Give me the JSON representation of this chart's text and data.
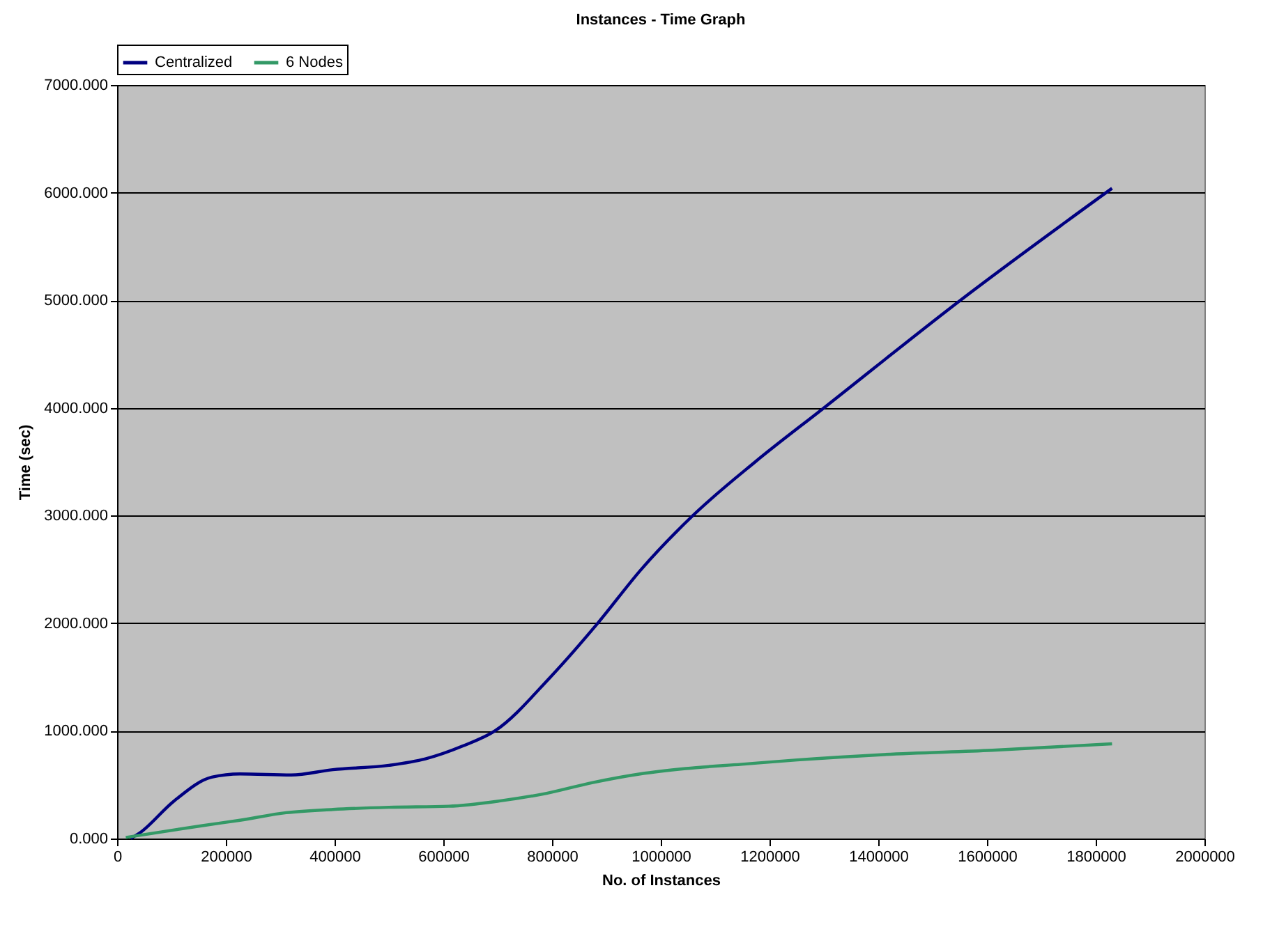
{
  "chart_data": {
    "type": "line",
    "title": "Instances - Time Graph",
    "xlabel": "No. of Instances",
    "ylabel": "Time (sec)",
    "xlim": [
      0,
      2000000
    ],
    "xticks": [
      0,
      200000,
      400000,
      600000,
      800000,
      1000000,
      1200000,
      1400000,
      1600000,
      1800000,
      2000000
    ],
    "ylim": [
      0,
      7000
    ],
    "yticks": [
      {
        "value": 0,
        "label": "0.000"
      },
      {
        "value": 1000,
        "label": "1000.000"
      },
      {
        "value": 2000,
        "label": "2000.000"
      },
      {
        "value": 3000,
        "label": "3000.000"
      },
      {
        "value": 4000,
        "label": "4000.000"
      },
      {
        "value": 5000,
        "label": "5000.000"
      },
      {
        "value": 6000,
        "label": "6000.000"
      },
      {
        "value": 7000,
        "label": "7000.000"
      }
    ],
    "grid": "y",
    "legend": "top",
    "marker": "none",
    "line_style": "solid",
    "series": [
      {
        "name": "Centralized",
        "color": "#000080",
        "x": [
          25000,
          41000,
          105000,
          174000,
          226000,
          320000,
          397000,
          500000,
          567000,
          636000,
          695000,
          797000,
          884000,
          964000,
          1059000,
          1174000,
          1300000,
          1551000,
          1830000
        ],
        "values": [
          0,
          50,
          350,
          570,
          600,
          590,
          640,
          680,
          740,
          860,
          1000,
          1500,
          2000,
          2500,
          3000,
          3500,
          4000,
          5000,
          6040
        ]
      },
      {
        "name": "6 Nodes",
        "color": "#339966",
        "x": [
          16000,
          157000,
          226000,
          311000,
          397000,
          500000,
          610000,
          705000,
          790000,
          875000,
          962000,
          1046000,
          1149000,
          1251000,
          1410000,
          1610000,
          1830000
        ],
        "values": [
          10,
          120,
          170,
          240,
          270,
          290,
          300,
          350,
          420,
          520,
          600,
          650,
          690,
          730,
          780,
          820,
          880
        ]
      }
    ]
  }
}
